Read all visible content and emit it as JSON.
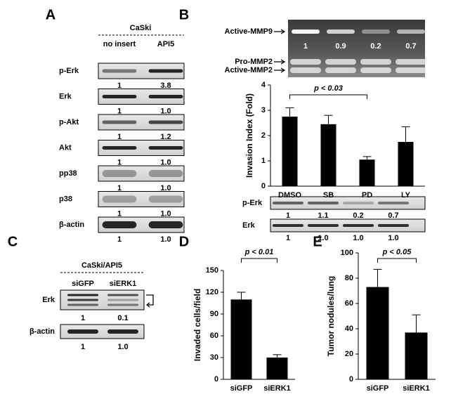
{
  "panel_letters": [
    "A",
    "B",
    "C",
    "D",
    "E"
  ],
  "panels": {
    "A": {
      "header": "CaSki",
      "columns": [
        "no insert",
        "API5"
      ],
      "rows": [
        {
          "label": "p-Erk",
          "values": [
            "1",
            "3.8"
          ]
        },
        {
          "label": "Erk",
          "values": [
            "1",
            "1.0"
          ]
        },
        {
          "label": "p-Akt",
          "values": [
            "1",
            "1.2"
          ]
        },
        {
          "label": "Akt",
          "values": [
            "1",
            "1.0"
          ]
        },
        {
          "label": "pp38",
          "values": [
            "1",
            "1.0"
          ]
        },
        {
          "label": "p38",
          "values": [
            "1",
            "1.0"
          ]
        },
        {
          "label": "β-actin",
          "values": [
            "1",
            "1.0"
          ]
        }
      ]
    },
    "B": {
      "gel_labels": [
        "Active-MMP9",
        "Pro-MMP2",
        "Active-MMP2"
      ],
      "gel_values": [
        "1",
        "0.9",
        "0.2",
        "0.7"
      ],
      "rows": [
        {
          "label": "p-Erk",
          "values": [
            "1",
            "1.1",
            "0.2",
            "0.7"
          ]
        },
        {
          "label": "Erk",
          "values": [
            "1",
            "1.0",
            "1.0",
            "1.0"
          ]
        }
      ]
    },
    "C": {
      "header": "CaSki/API5",
      "columns": [
        "siGFP",
        "siERK1"
      ],
      "rows": [
        {
          "label": "Erk",
          "values": [
            "1",
            "0.1"
          ]
        },
        {
          "label": "β-actin",
          "values": [
            "1",
            "1.0"
          ]
        }
      ]
    }
  },
  "chart_data": [
    {
      "type": "bar",
      "ylabel": "Invasion Index (Fold)",
      "annotation": "p < 0.03",
      "categories": [
        "DMSO",
        "SB",
        "PD",
        "LY"
      ],
      "values": [
        2.75,
        2.45,
        1.05,
        1.75
      ],
      "errors": [
        0.35,
        0.35,
        0.12,
        0.6
      ],
      "color": "#000000",
      "ylim": [
        0,
        4
      ],
      "yticks": [
        0,
        1,
        2,
        3,
        4
      ]
    },
    {
      "type": "bar",
      "ylabel": "Invaded cells/field",
      "annotation": "p < 0.01",
      "categories": [
        "siGFP",
        "siERK1"
      ],
      "values": [
        110,
        30
      ],
      "errors": [
        10,
        4
      ],
      "color": "#000000",
      "ylim": [
        0,
        150
      ],
      "yticks": [
        0,
        30,
        60,
        90,
        120,
        150
      ]
    },
    {
      "type": "bar",
      "ylabel": "Tumor nodules/lung",
      "annotation": "p < 0.05",
      "categories": [
        "siGFP",
        "siERK1"
      ],
      "values": [
        73,
        37
      ],
      "errors": [
        14,
        14
      ],
      "color": "#000000",
      "ylim": [
        0,
        100
      ],
      "yticks": [
        0,
        20,
        40,
        60,
        80,
        100
      ]
    }
  ]
}
